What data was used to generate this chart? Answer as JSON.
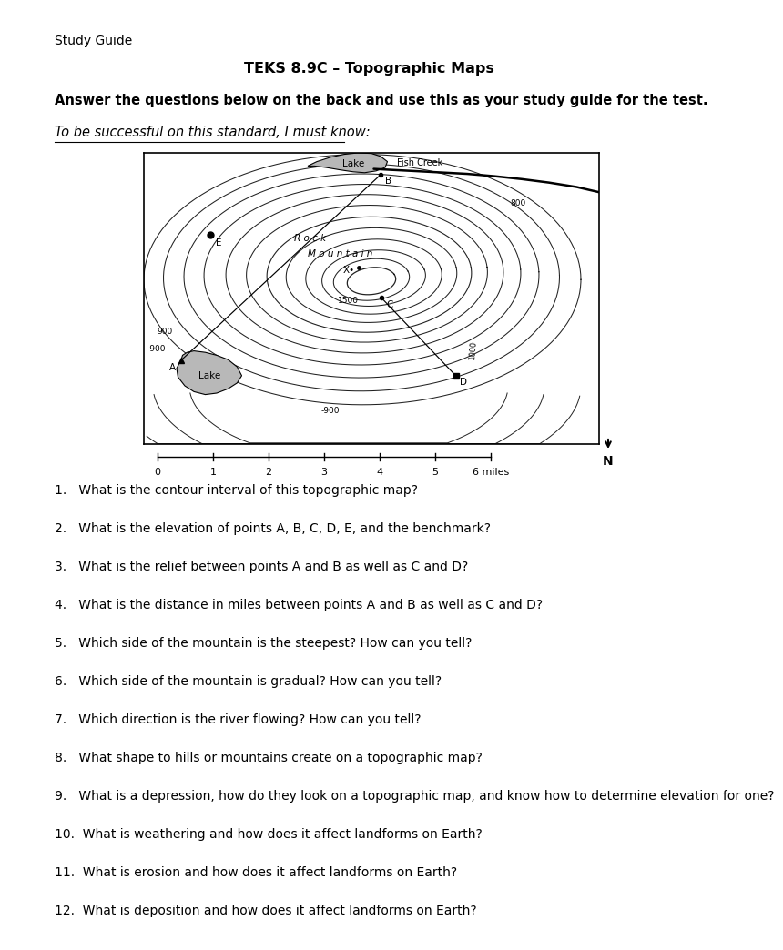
{
  "page_title": "Study Guide",
  "main_title": "TEKS 8.9C – Topographic Maps",
  "subtitle_bold": "Answer the questions below on the back and use this as your study guide for the test.",
  "subtitle_italic": "To be successful on this standard, I must know:",
  "questions": [
    "1.   What is the contour interval of this topographic map?",
    "2.   What is the elevation of points A, B, C, D, E, and the benchmark?",
    "3.   What is the relief between points A and B as well as C and D?",
    "4.   What is the distance in miles between points A and B as well as C and D?",
    "5.   Which side of the mountain is the steepest? How can you tell?",
    "6.   Which side of the mountain is gradual? How can you tell?",
    "7.   Which direction is the river flowing? How can you tell?",
    "8.   What shape to hills or mountains create on a topographic map?",
    "9.   What is a depression, how do they look on a topographic map, and know how to determine elevation for one?",
    "10.  What is weathering and how does it affect landforms on Earth?",
    "11.  What is erosion and how does it affect landforms on Earth?",
    "12.  What is deposition and how does it affect landforms on Earth?"
  ],
  "bg_color": "#ffffff",
  "text_color": "#000000",
  "lake_color": "#b8b8b8",
  "contour_color": "#222222"
}
